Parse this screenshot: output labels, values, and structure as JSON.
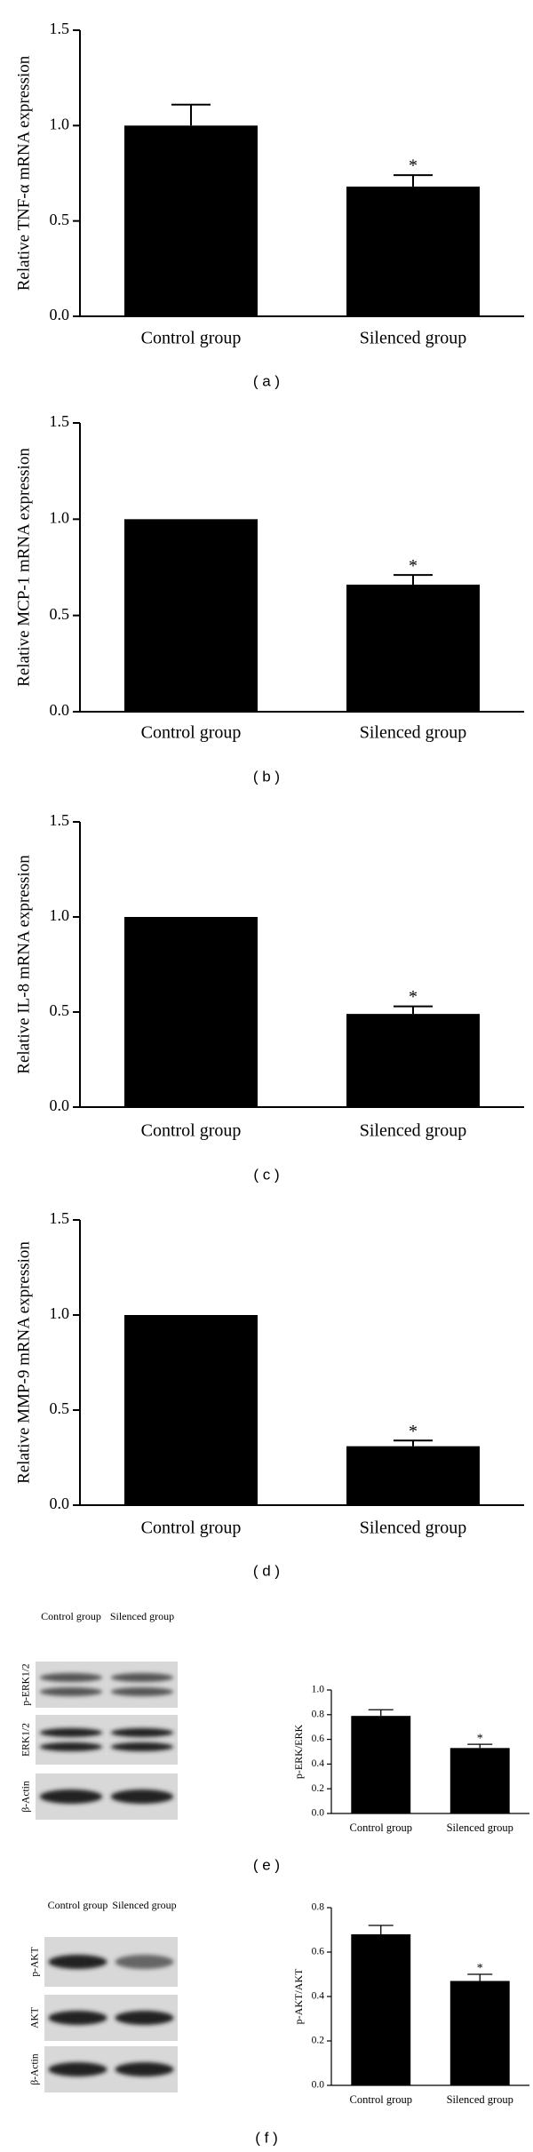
{
  "chart_data": [
    {
      "type": "bar",
      "panel": "( a )",
      "ylabel": "Relative TNF-α mRNA expression",
      "categories": [
        "Control group",
        "Silenced group"
      ],
      "values": [
        1.0,
        0.68
      ],
      "errors": [
        0.11,
        0.06
      ],
      "annotations": [
        {
          "text": "*",
          "category": "Silenced group"
        }
      ],
      "color": "#000000",
      "ylim": [
        0,
        1.5
      ],
      "yticks": [
        {
          "value": 0,
          "label": "0.0"
        },
        0.5,
        {
          "value": 1,
          "label": "1.0"
        },
        1.5
      ]
    },
    {
      "type": "bar",
      "panel": "( b )",
      "ylabel": "Relative MCP-1 mRNA expression",
      "categories": [
        "Control group",
        "Silenced group"
      ],
      "values": [
        1.0,
        0.66
      ],
      "errors": [
        null,
        0.05
      ],
      "annotations": [
        {
          "text": "*",
          "category": "Silenced group"
        }
      ],
      "color": "#000000",
      "ylim": [
        0,
        1.5
      ],
      "yticks": [
        {
          "value": 0,
          "label": "0.0"
        },
        0.5,
        {
          "value": 1,
          "label": "1.0"
        },
        1.5
      ]
    },
    {
      "type": "bar",
      "panel": "( c )",
      "ylabel": "Relative IL-8 mRNA expression",
      "categories": [
        "Control group",
        "Silenced group"
      ],
      "values": [
        1.0,
        0.49
      ],
      "errors": [
        null,
        0.04
      ],
      "annotations": [
        {
          "text": "*",
          "category": "Silenced group"
        }
      ],
      "color": "#000000",
      "ylim": [
        0,
        1.5
      ],
      "yticks": [
        {
          "value": 0,
          "label": "0.0"
        },
        0.5,
        {
          "value": 1,
          "label": "1.0"
        },
        1.5
      ]
    },
    {
      "type": "bar",
      "panel": "( d )",
      "ylabel": "Relative MMP-9 mRNA expression",
      "categories": [
        "Control group",
        "Silenced group"
      ],
      "values": [
        1.0,
        0.31
      ],
      "errors": [
        null,
        0.03
      ],
      "annotations": [
        {
          "text": "*",
          "category": "Silenced group"
        }
      ],
      "color": "#000000",
      "ylim": [
        0,
        1.5
      ],
      "yticks": [
        {
          "value": 0,
          "label": "0.0"
        },
        0.5,
        {
          "value": 1,
          "label": "1.0"
        },
        1.5
      ]
    },
    {
      "type": "bar",
      "panel": "( e )",
      "ylabel": "p-ERK/ERK",
      "categories": [
        "Control group",
        "Silenced group"
      ],
      "values": [
        0.79,
        0.53
      ],
      "errors": [
        0.05,
        0.03
      ],
      "annotations": [
        {
          "text": "*",
          "category": "Silenced group"
        }
      ],
      "color": "#000000",
      "ylim": [
        0,
        1.0
      ],
      "yticks": [
        {
          "value": 0,
          "label": "0.0"
        },
        0.2,
        0.4,
        0.6,
        0.8,
        {
          "value": 1,
          "label": "1.0"
        }
      ]
    },
    {
      "type": "bar",
      "panel": "( f )",
      "ylabel": "p-AKT/AKT",
      "categories": [
        "Control group",
        "Silenced group"
      ],
      "values": [
        0.68,
        0.47
      ],
      "errors": [
        0.04,
        0.03
      ],
      "annotations": [
        {
          "text": "*",
          "category": "Silenced group"
        }
      ],
      "color": "#000000",
      "ylim": [
        0,
        0.8
      ],
      "yticks": [
        {
          "value": 0,
          "label": "0.0"
        },
        0.2,
        0.4,
        0.6,
        0.8
      ]
    }
  ],
  "blots": [
    {
      "lanes": [
        "Control group",
        "Silenced group"
      ],
      "rows": [
        "p-ERK1/2",
        "ERK1/2",
        "β-Actin"
      ]
    },
    {
      "lanes": [
        "Control group",
        "Silenced group"
      ],
      "rows": [
        "p-AKT",
        "AKT",
        "β-Actin"
      ]
    }
  ]
}
